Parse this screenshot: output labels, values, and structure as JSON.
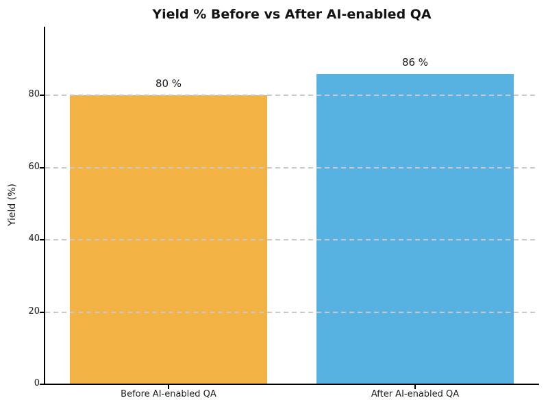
{
  "chart_data": {
    "type": "bar",
    "title": "Yield % Before vs After AI-enabled QA",
    "categories": [
      "Before AI-enabled QA",
      "After AI-enabled QA"
    ],
    "values": [
      80,
      86
    ],
    "bar_labels": [
      "80 %",
      "86 %"
    ],
    "bar_colors": [
      "#F2B344",
      "#57B2E2"
    ],
    "xlabel": "",
    "ylabel": "Yield (%)",
    "ylim": [
      0,
      99
    ],
    "yticks": [
      0,
      20,
      40,
      60,
      80
    ],
    "ytick_labels": [
      "0",
      "20",
      "40",
      "60",
      "80"
    ],
    "grid": "horizontal-dashed-over-bars",
    "grid_color": "#C8C8C8",
    "spine_color": "#000000",
    "text_color": "#1A1A1A",
    "legend": "none",
    "bar_width_fraction": 0.8
  }
}
